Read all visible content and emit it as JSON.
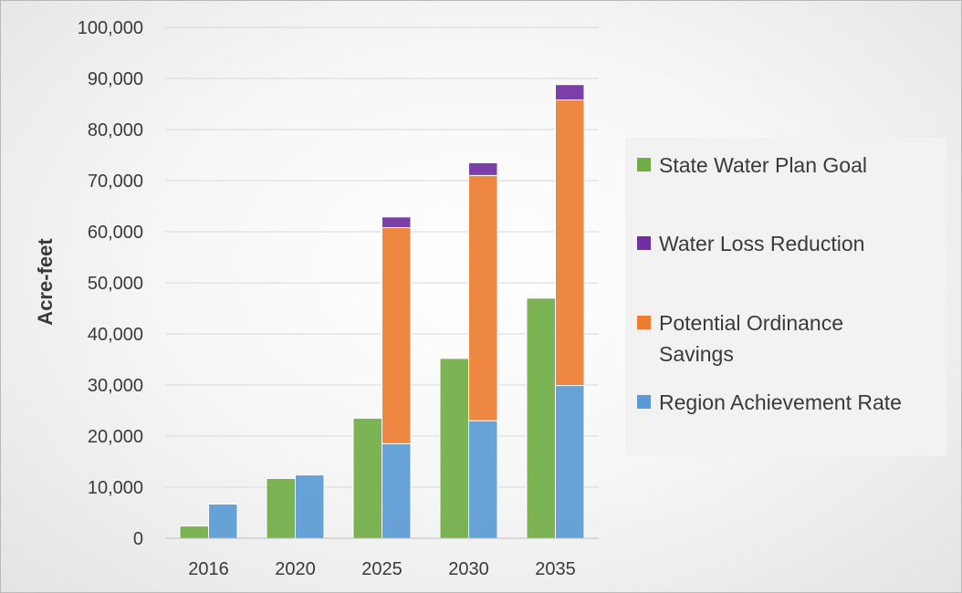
{
  "chart_data": {
    "type": "bar",
    "stacked": true,
    "title": "",
    "xlabel": "",
    "ylabel": "Acre-feet",
    "ylim": [
      0,
      100000
    ],
    "yticks": [
      0,
      10000,
      20000,
      30000,
      40000,
      50000,
      60000,
      70000,
      80000,
      90000,
      100000
    ],
    "ytick_labels": [
      "0",
      "10,000",
      "20,000",
      "30,000",
      "40,000",
      "50,000",
      "60,000",
      "70,000",
      "80,000",
      "90,000",
      "100,000"
    ],
    "grid": true,
    "legend_position": "right",
    "categories": [
      "2016",
      "2020",
      "2025",
      "2030",
      "2035"
    ],
    "series": [
      {
        "name": "State Water Plan Goal",
        "stack": "goal",
        "color": "#70ad47",
        "values": [
          2400,
          11700,
          23500,
          35200,
          47000
        ]
      },
      {
        "name": "Region Achievement Rate",
        "stack": "region",
        "color": "#5b9bd5",
        "values": [
          6700,
          12400,
          18500,
          23000,
          29900
        ]
      },
      {
        "name": "Potential Ordinance Savings",
        "stack": "region",
        "color": "#ed7d31",
        "values": [
          0,
          0,
          42300,
          48000,
          55900
        ]
      },
      {
        "name": "Water Loss Reduction",
        "stack": "region",
        "color": "#7030a0",
        "values": [
          0,
          0,
          2100,
          2500,
          3000
        ]
      }
    ],
    "legend": [
      {
        "label": "State Water Plan Goal",
        "color": "#70ad47"
      },
      {
        "label": "Water Loss Reduction",
        "color": "#7030a0"
      },
      {
        "label_lines": [
          "Potential Ordinance",
          "Savings"
        ],
        "color": "#ed7d31"
      },
      {
        "label": "Region Achievement Rate",
        "color": "#5b9bd5"
      }
    ]
  }
}
